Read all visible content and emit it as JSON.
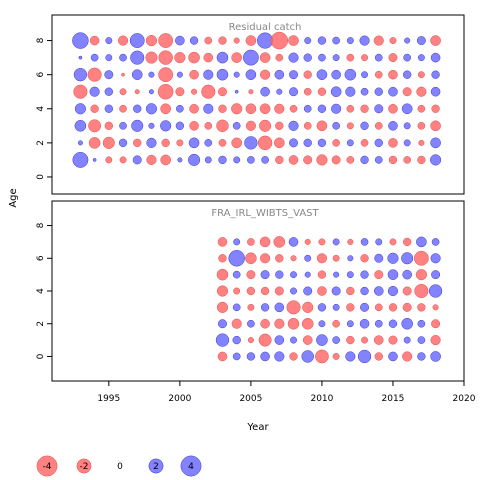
{
  "chart_data": {
    "type": "bubble",
    "xlabel": "Year",
    "ylabel": "Age",
    "xlim": [
      1991,
      2020
    ],
    "x_ticks": [
      1995,
      2000,
      2005,
      2010,
      2015,
      2020
    ],
    "y_ticks": [
      0,
      2,
      4,
      6,
      8
    ],
    "colors": {
      "positive": "#6d6cff",
      "negative": "#ff6b6b",
      "edge_pos": "#3a3ad0",
      "edge_neg": "#e05050"
    },
    "panels": [
      {
        "title": "Residual catch",
        "ylim": [
          -1,
          9.5
        ],
        "years": [
          1993,
          1994,
          1995,
          1996,
          1997,
          1998,
          1999,
          2000,
          2001,
          2002,
          2003,
          2004,
          2005,
          2006,
          2007,
          2008,
          2009,
          2010,
          2011,
          2012,
          2013,
          2014,
          2015,
          2016,
          2017,
          2018
        ],
        "ages": [
          1,
          2,
          3,
          4,
          5,
          6,
          7,
          8
        ],
        "values": {
          "8": [
            2.5,
            -0.8,
            0.4,
            -0.9,
            2.0,
            -1.1,
            -2.0,
            0.8,
            0.6,
            -0.5,
            -0.6,
            -0.3,
            -1.0,
            2.4,
            -2.8,
            -1.0,
            0.4,
            0.6,
            0.5,
            0.4,
            0.9,
            -0.9,
            -0.4,
            0.3,
            0.7,
            -1.0
          ],
          "7": [
            0.1,
            0.5,
            0.4,
            0.5,
            1.8,
            -1.3,
            -1.9,
            -1.1,
            -1.2,
            -0.8,
            1.2,
            -1.0,
            2.3,
            -1.0,
            -0.5,
            0.9,
            0.6,
            0.5,
            0.4,
            -0.5,
            -0.4,
            0.5,
            -0.7,
            0.5,
            0.4,
            0.8
          ],
          "6": [
            1.6,
            -1.8,
            0.7,
            -0.1,
            1.0,
            0.3,
            -2.0,
            0.3,
            -0.8,
            0.9,
            1.2,
            0.3,
            1.0,
            -0.9,
            0.8,
            0.7,
            -0.6,
            1.0,
            0.8,
            1.2,
            0.4,
            -0.5,
            -0.8,
            0.6,
            -0.4,
            0.6
          ],
          "5": [
            -1.8,
            0.9,
            0.6,
            -0.4,
            -0.2,
            0.2,
            -2.2,
            -0.7,
            -0.3,
            -1.8,
            -0.7,
            0.1,
            -0.2,
            0.8,
            0.3,
            0.7,
            -0.5,
            -0.6,
            1.0,
            0.9,
            0.5,
            0.6,
            0.8,
            -0.7,
            -0.9,
            0.8
          ],
          "4": [
            1.1,
            -0.6,
            0.6,
            -0.5,
            0.6,
            1.1,
            -1.0,
            0.5,
            -0.8,
            0.9,
            -0.6,
            -1.1,
            -1.0,
            -1.0,
            -0.9,
            -0.5,
            0.5,
            0.6,
            0.9,
            -0.5,
            -0.6,
            0.7,
            -0.8,
            1.0,
            -0.5,
            -0.6
          ],
          "3": [
            1.2,
            -1.5,
            -0.6,
            0.5,
            1.3,
            0.3,
            1.1,
            0.6,
            -0.8,
            -0.5,
            -1.4,
            0.5,
            -0.9,
            -1.3,
            -0.6,
            0.9,
            -0.5,
            -1.0,
            0.5,
            -0.4,
            0.6,
            -0.5,
            0.8,
            0.4,
            -0.5,
            -1.0
          ],
          "2": [
            0.2,
            -1.2,
            -1.3,
            0.6,
            -0.6,
            0.9,
            -0.6,
            -0.4,
            1.0,
            0.5,
            -0.5,
            -1.0,
            1.6,
            -1.9,
            -1.0,
            0.7,
            0.6,
            0.6,
            -0.5,
            0.4,
            -0.5,
            0.6,
            -0.8,
            0.4,
            -0.3,
            1.0
          ],
          "1": [
            2.3,
            0.1,
            -0.4,
            -0.4,
            0.7,
            -0.9,
            -1.0,
            0.2,
            1.3,
            0.4,
            0.6,
            0.4,
            0.5,
            0.5,
            -0.6,
            -0.8,
            -0.7,
            -1.1,
            -0.7,
            -0.5,
            0.6,
            0.5,
            -0.6,
            -0.5,
            -0.6,
            1.1
          ]
        }
      },
      {
        "title": "FRA_IRL_WIBTS_VAST",
        "ylim": [
          -1.5,
          9.5
        ],
        "years": [
          2003,
          2004,
          2005,
          2006,
          2007,
          2008,
          2009,
          2010,
          2011,
          2012,
          2013,
          2014,
          2015,
          2016,
          2017,
          2018
        ],
        "ages": [
          0,
          1,
          2,
          3,
          4,
          5,
          6,
          7,
          8
        ],
        "values": {
          "7": [
            -0.8,
            0.4,
            -0.5,
            -1.0,
            -1.2,
            0.8,
            -0.3,
            -0.4,
            0.4,
            -0.3,
            0.5,
            0.4,
            -0.4,
            -0.6,
            1.0,
            0.5
          ],
          "6": [
            -0.6,
            2.5,
            -1.2,
            -0.9,
            -0.6,
            -0.3,
            0.4,
            -0.9,
            -0.4,
            0.3,
            -0.6,
            0.7,
            1.1,
            1.3,
            -2.0,
            0.9
          ],
          "5": [
            -1.2,
            0.5,
            -0.7,
            0.7,
            0.6,
            0.4,
            0.3,
            -0.6,
            0.3,
            0.4,
            0.6,
            -0.7,
            1.0,
            0.8,
            -1.1,
            0.7
          ],
          "4": [
            -1.1,
            -0.4,
            -0.6,
            -0.6,
            -0.7,
            0.4,
            0.7,
            -0.8,
            0.7,
            -0.6,
            0.6,
            0.8,
            0.9,
            -0.7,
            -1.8,
            1.6
          ],
          "3": [
            -1.1,
            0.5,
            -0.4,
            0.6,
            0.8,
            -1.8,
            -1.1,
            0.6,
            0.4,
            -0.6,
            0.7,
            -0.5,
            -0.6,
            -0.7,
            -0.6,
            -0.3
          ],
          "2": [
            0.7,
            -0.9,
            0.5,
            -0.8,
            -0.9,
            -1.2,
            -1.2,
            0.4,
            -0.5,
            0.4,
            0.8,
            0.5,
            0.6,
            1.2,
            0.5,
            -0.7
          ],
          "1": [
            1.6,
            0.6,
            -0.3,
            -1.5,
            0.8,
            0.4,
            -0.8,
            1.2,
            0.5,
            -0.6,
            -0.4,
            -0.8,
            -0.7,
            0.4,
            0.5,
            -0.9
          ],
          "0": [
            -0.8,
            0.5,
            0.6,
            0.8,
            0.9,
            -0.6,
            1.4,
            -1.7,
            -0.4,
            0.9,
            1.6,
            -0.6,
            0.8,
            -0.9,
            0.6,
            1.0
          ]
        }
      }
    ],
    "legend": {
      "values": [
        -4,
        -2,
        0,
        2,
        4
      ],
      "labels": [
        "-4",
        "-2",
        "0",
        "2",
        "4"
      ]
    }
  }
}
